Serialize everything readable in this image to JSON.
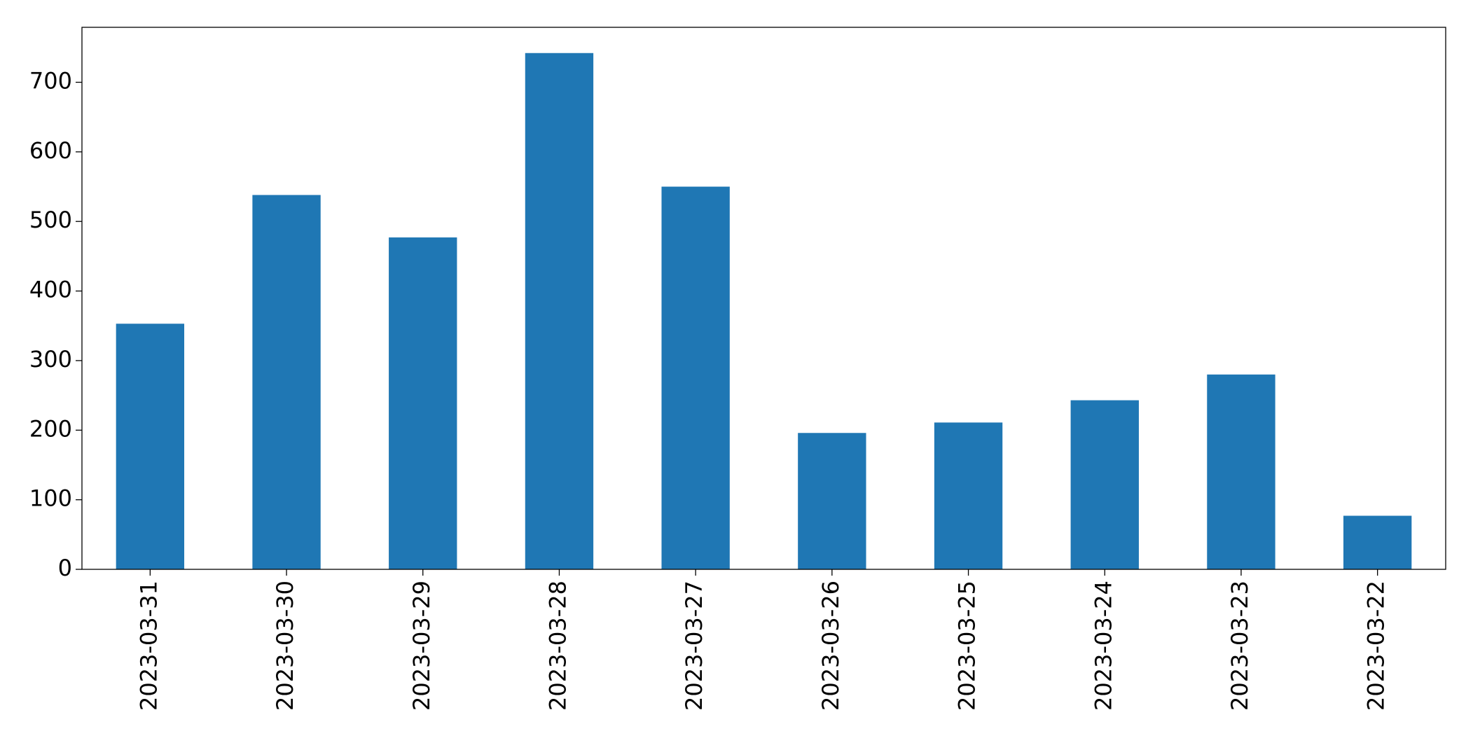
{
  "chart_data": {
    "type": "bar",
    "categories": [
      "2023-03-31",
      "2023-03-30",
      "2023-03-29",
      "2023-03-28",
      "2023-03-27",
      "2023-03-26",
      "2023-03-25",
      "2023-03-24",
      "2023-03-23",
      "2023-03-22"
    ],
    "values": [
      353,
      538,
      477,
      742,
      550,
      196,
      211,
      243,
      280,
      77
    ],
    "color": "#1f77b4",
    "ylim": [
      0,
      779
    ],
    "yticks": [
      0,
      100,
      200,
      300,
      400,
      500,
      600,
      700
    ],
    "grid": false
  }
}
